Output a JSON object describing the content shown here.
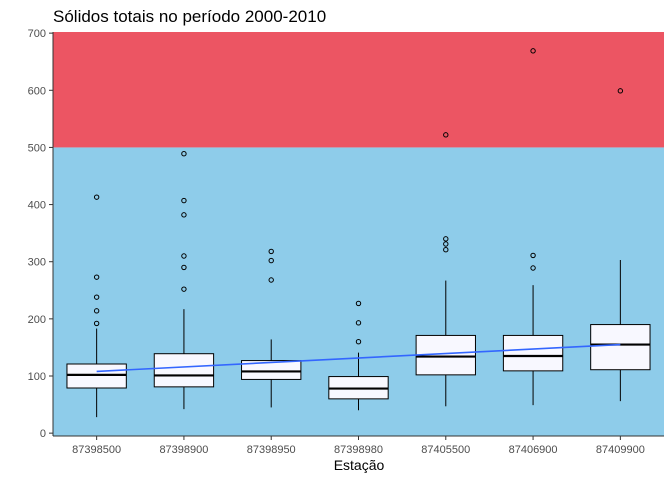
{
  "chart_data": {
    "type": "boxplot",
    "title": "Sólidos totais no período 2000-2010",
    "xlabel": "Estação",
    "ylabel": "",
    "ylim": [
      -5,
      702
    ],
    "yticks": [
      0,
      100,
      200,
      300,
      400,
      500,
      600,
      700
    ],
    "categories": [
      "87398500",
      "87398900",
      "87398950",
      "87398980",
      "87405500",
      "87406900",
      "87409900"
    ],
    "boxes": [
      {
        "category": "87398500",
        "whisker_low": 28,
        "q1": 79,
        "median": 102,
        "q3": 121,
        "whisker_high": 183,
        "outliers": [
          192,
          214,
          238,
          273,
          413
        ]
      },
      {
        "category": "87398900",
        "whisker_low": 42,
        "q1": 81,
        "median": 101,
        "q3": 139,
        "whisker_high": 217,
        "outliers": [
          252,
          290,
          310,
          382,
          407,
          489
        ]
      },
      {
        "category": "87398950",
        "whisker_low": 45,
        "q1": 94,
        "median": 108,
        "q3": 127,
        "whisker_high": 164,
        "outliers": [
          268,
          302,
          318
        ]
      },
      {
        "category": "87398980",
        "whisker_low": 40,
        "q1": 60,
        "median": 78,
        "q3": 99,
        "whisker_high": 141,
        "outliers": [
          160,
          193,
          227
        ]
      },
      {
        "category": "87405500",
        "whisker_low": 47,
        "q1": 102,
        "median": 134,
        "q3": 171,
        "whisker_high": 267,
        "outliers": [
          321,
          331,
          340,
          522
        ]
      },
      {
        "category": "87406900",
        "whisker_low": 49,
        "q1": 109,
        "median": 135,
        "q3": 171,
        "whisker_high": 259,
        "outliers": [
          289,
          311,
          669
        ]
      },
      {
        "category": "87409900",
        "whisker_low": 56,
        "q1": 111,
        "median": 155,
        "q3": 190,
        "whisker_high": 303,
        "outliers": [
          599
        ]
      }
    ],
    "trend_line": {
      "color": "#3366FF",
      "start": {
        "category": "87398500",
        "y": 108
      },
      "end": {
        "category": "87409900",
        "y": 155
      }
    },
    "bands": [
      {
        "from": -5,
        "to": 500,
        "color": "#8ECCEA"
      },
      {
        "from": 500,
        "to": 702,
        "color": "#EC5563"
      }
    ],
    "colors": {
      "box_fill": "#F8F8FF",
      "box_stroke": "#000000",
      "axis_text": "#4D4D4D",
      "title": "#000000"
    },
    "grid": false,
    "legend": "none"
  }
}
